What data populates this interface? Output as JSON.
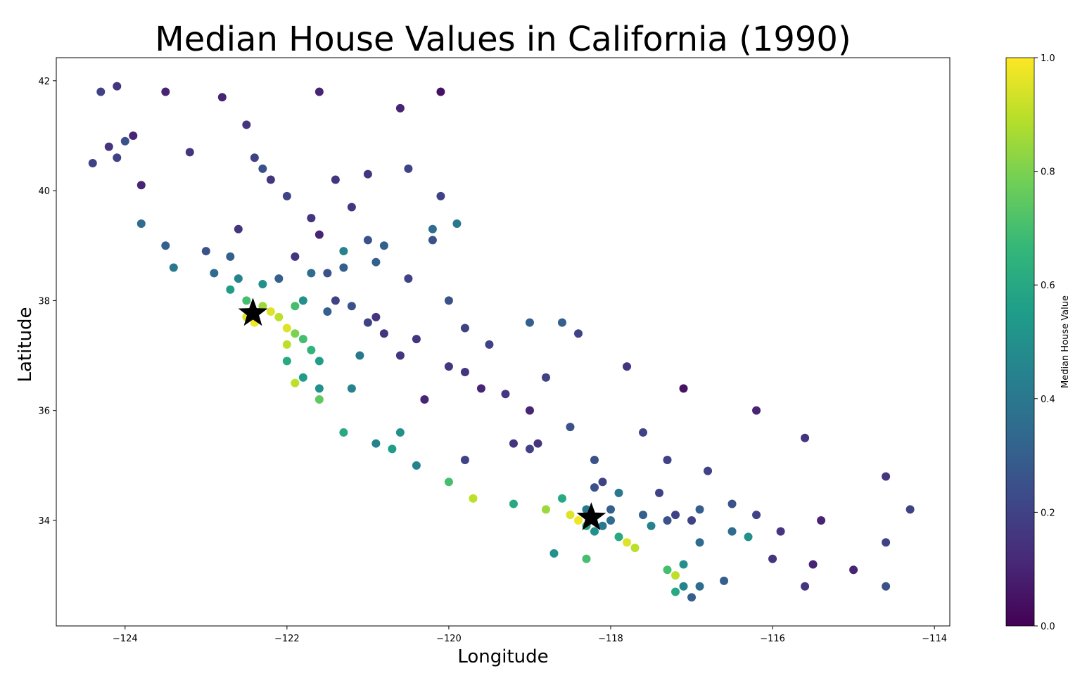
{
  "chart_data": {
    "type": "scatter",
    "title": "Median House Values in California (1990)",
    "xlabel": "Longitude",
    "ylabel": "Latitude",
    "colorbar_label": "Median House Value",
    "xlim": [
      -124.85,
      -113.81
    ],
    "ylim": [
      32.08,
      42.42
    ],
    "xticks": [
      {
        "value": -124,
        "label": "−124"
      },
      {
        "value": -122,
        "label": "−122"
      },
      {
        "value": -120,
        "label": "−120"
      },
      {
        "value": -118,
        "label": "−118"
      },
      {
        "value": -116,
        "label": "−116"
      },
      {
        "value": -114,
        "label": "−114"
      }
    ],
    "yticks": [
      34,
      36,
      38,
      40,
      42
    ],
    "clim": [
      0,
      1
    ],
    "cticks": [
      {
        "value": 0,
        "label": "0.0"
      },
      0.2,
      0.4,
      0.6,
      0.8,
      {
        "value": 1,
        "label": "1.0"
      }
    ],
    "colormap_colors": [
      "#440154",
      "#482878",
      "#3e4989",
      "#31688e",
      "#26828e",
      "#1f9e89",
      "#35b779",
      "#6ece58",
      "#b5de2b",
      "#fde725"
    ],
    "x": [
      -124.3,
      -124.1,
      -124.2,
      -124.1,
      -124.0,
      -124.4,
      -123.9,
      -123.8,
      -123.5,
      -123.2,
      -122.8,
      -122.5,
      -122.4,
      -122.3,
      -122.2,
      -122.0,
      -121.6,
      -120.6,
      -120.1,
      -121.0,
      -120.5,
      -120.1,
      -121.2,
      -121.7,
      -121.6,
      -121.0,
      -120.8,
      -120.2,
      -123.8,
      -123.5,
      -123.0,
      -122.7,
      -122.6,
      -122.9,
      -122.3,
      -122.7,
      -122.5,
      -122.3,
      -122.2,
      -122.1,
      -122.0,
      -122.4,
      -122.5,
      -121.9,
      -121.8,
      -122.0,
      -121.7,
      -122.0,
      -121.8,
      -121.9,
      -121.6,
      -121.6,
      -121.2,
      -121.9,
      -121.8,
      -121.3,
      -121.5,
      -121.4,
      -121.2,
      -121.0,
      -120.8,
      -120.4,
      -120.0,
      -119.8,
      -119.6,
      -119.3,
      -119.0,
      -119.2,
      -119.0,
      -118.9,
      -120.5,
      -120.0,
      -119.8,
      -120.6,
      -120.3,
      -119.0,
      -118.4,
      -117.8,
      -120.6,
      -120.7,
      -120.4,
      -120.0,
      -119.7,
      -119.2,
      -118.8,
      -118.5,
      -118.4,
      -118.3,
      -118.2,
      -118.1,
      -118.0,
      -117.9,
      -117.8,
      -117.7,
      -118.3,
      -118.0,
      -118.2,
      -118.1,
      -117.6,
      -117.3,
      -117.2,
      -117.0,
      -116.9,
      -116.5,
      -116.3,
      -116.2,
      -117.2,
      -117.1,
      -117.2,
      -117.3,
      -117.1,
      -116.9,
      -117.0,
      -116.6,
      -116.0,
      -115.6,
      -115.5,
      -115.9,
      -114.6,
      -114.3,
      -114.6,
      -114.6,
      -115.0,
      -116.2,
      -117.1,
      -115.6,
      -117.6,
      -117.3,
      -116.8,
      -118.2,
      -118.5,
      -118.8,
      -119.8,
      -121.3,
      -120.9,
      -118.7,
      -118.3,
      -117.4,
      -120.2,
      -121.4,
      -122.6,
      -123.4,
      -121.9,
      -122.1,
      -121.7,
      -121.3,
      -120.9,
      -119.9,
      -121.5,
      -121.1,
      -121.6,
      -120.9,
      -119.5,
      -118.6,
      -117.9,
      -116.5,
      -115.4,
      -118.6,
      -117.5,
      -116.9
    ],
    "y": [
      41.8,
      41.9,
      40.8,
      40.6,
      40.9,
      40.5,
      41.0,
      40.1,
      41.8,
      40.7,
      41.7,
      41.2,
      40.6,
      40.4,
      40.2,
      39.9,
      41.8,
      41.5,
      41.8,
      40.3,
      40.4,
      39.9,
      39.7,
      39.5,
      39.2,
      39.1,
      39.0,
      39.3,
      39.4,
      39.0,
      38.9,
      38.8,
      38.4,
      38.5,
      38.3,
      38.2,
      38.0,
      37.9,
      37.8,
      37.7,
      37.5,
      37.6,
      37.7,
      37.4,
      37.3,
      37.2,
      37.1,
      36.9,
      36.6,
      36.5,
      36.4,
      36.2,
      36.4,
      37.9,
      38.0,
      38.6,
      38.5,
      38.0,
      37.9,
      37.6,
      37.4,
      37.3,
      36.8,
      36.7,
      36.4,
      36.3,
      36.0,
      35.4,
      35.3,
      35.4,
      38.4,
      38.0,
      37.5,
      37.0,
      36.2,
      37.6,
      37.4,
      36.8,
      35.6,
      35.3,
      35.0,
      34.7,
      34.4,
      34.3,
      34.2,
      34.1,
      34.0,
      33.9,
      33.8,
      33.9,
      34.0,
      33.7,
      33.6,
      33.5,
      34.2,
      34.2,
      34.6,
      34.7,
      34.1,
      34.0,
      34.1,
      34.0,
      34.2,
      33.8,
      33.7,
      34.1,
      32.7,
      32.8,
      33.0,
      33.1,
      33.2,
      32.8,
      32.6,
      32.9,
      33.3,
      32.8,
      33.2,
      33.8,
      34.8,
      34.2,
      33.6,
      32.8,
      33.1,
      36.0,
      36.4,
      35.5,
      35.6,
      35.1,
      34.9,
      35.1,
      35.7,
      36.6,
      35.1,
      35.6,
      35.4,
      33.4,
      33.3,
      34.5,
      39.1,
      40.2,
      39.3,
      38.6,
      38.8,
      38.4,
      38.5,
      38.9,
      38.7,
      39.4,
      37.8,
      37.0,
      36.9,
      37.7,
      37.2,
      37.6,
      34.5,
      34.3,
      34.0,
      34.4,
      33.9,
      33.6
    ],
    "c": [
      0.2,
      0.15,
      0.15,
      0.2,
      0.25,
      0.2,
      0.1,
      0.1,
      0.1,
      0.15,
      0.1,
      0.15,
      0.2,
      0.25,
      0.15,
      0.2,
      0.1,
      0.1,
      0.05,
      0.15,
      0.2,
      0.2,
      0.15,
      0.15,
      0.1,
      0.25,
      0.3,
      0.35,
      0.35,
      0.3,
      0.25,
      0.3,
      0.45,
      0.35,
      0.5,
      0.55,
      0.7,
      0.85,
      0.95,
      0.9,
      0.95,
      0.98,
      0.95,
      0.8,
      0.7,
      0.9,
      0.65,
      0.6,
      0.55,
      0.9,
      0.5,
      0.75,
      0.45,
      0.7,
      0.5,
      0.3,
      0.25,
      0.2,
      0.25,
      0.2,
      0.15,
      0.15,
      0.15,
      0.15,
      0.1,
      0.15,
      0.1,
      0.15,
      0.2,
      0.15,
      0.2,
      0.25,
      0.2,
      0.15,
      0.1,
      0.3,
      0.2,
      0.15,
      0.5,
      0.55,
      0.45,
      0.7,
      0.9,
      0.6,
      0.85,
      0.95,
      0.98,
      0.6,
      0.5,
      0.4,
      0.35,
      0.6,
      0.95,
      0.9,
      0.4,
      0.3,
      0.25,
      0.2,
      0.3,
      0.25,
      0.2,
      0.2,
      0.3,
      0.35,
      0.5,
      0.2,
      0.6,
      0.45,
      0.9,
      0.7,
      0.5,
      0.35,
      0.3,
      0.3,
      0.15,
      0.15,
      0.1,
      0.15,
      0.15,
      0.2,
      0.2,
      0.25,
      0.1,
      0.1,
      0.05,
      0.15,
      0.2,
      0.2,
      0.2,
      0.25,
      0.25,
      0.2,
      0.2,
      0.6,
      0.45,
      0.5,
      0.7,
      0.2,
      0.25,
      0.15,
      0.15,
      0.4,
      0.15,
      0.3,
      0.35,
      0.45,
      0.3,
      0.4,
      0.3,
      0.4,
      0.55,
      0.15,
      0.2,
      0.3,
      0.4,
      0.25,
      0.1,
      0.6,
      0.45,
      0.35
    ],
    "highlight_x": [
      -122.42,
      -118.24
    ],
    "highlight_y": [
      37.77,
      34.05
    ],
    "highlight_color": "#000000"
  }
}
